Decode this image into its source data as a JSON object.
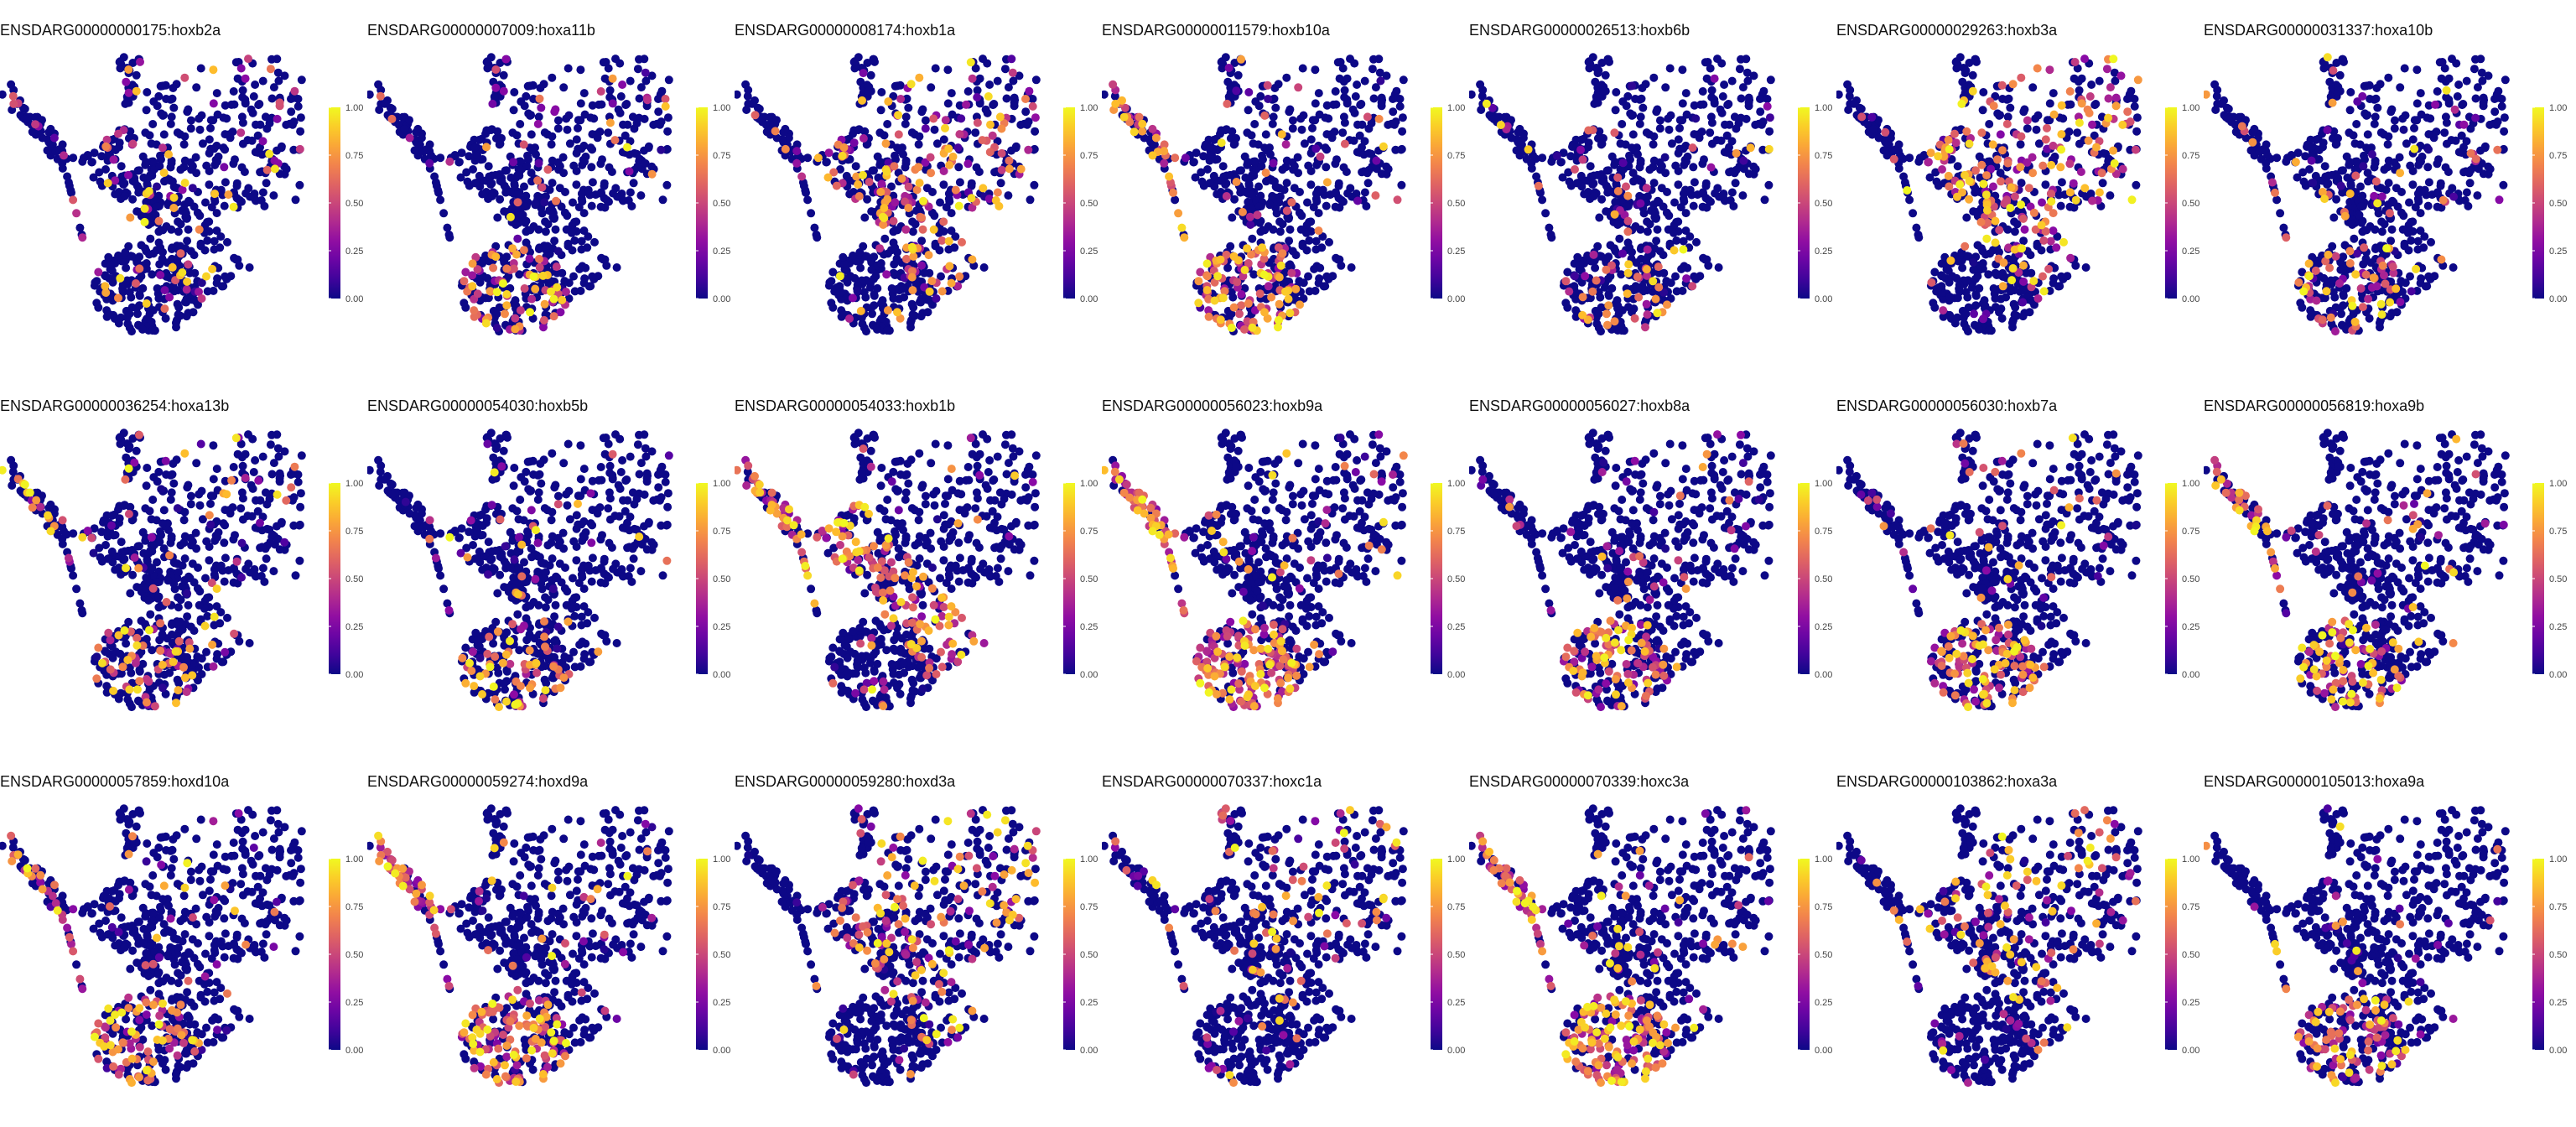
{
  "chart_data": {
    "type": "scatter",
    "layout_rows": 3,
    "layout_cols": 7,
    "colormap": "plasma",
    "colorbar": {
      "range": [
        0,
        1
      ],
      "ticks": [
        "0.00",
        "0.25",
        "0.50",
        "0.75",
        "1.00"
      ]
    },
    "background": "#ffffff",
    "grid": false,
    "axes_visible": false,
    "panels": [
      {
        "title": "ENSDARG00000000175:hoxb2a",
        "expressing_region": "scattered",
        "level": 0.35
      },
      {
        "title": "ENSDARG00000007009:hoxa11b",
        "expressing_region": "bottom",
        "level": 0.4
      },
      {
        "title": "ENSDARG00000008174:hoxb1a",
        "expressing_region": "center",
        "level": 0.5
      },
      {
        "title": "ENSDARG00000011579:hoxb10a",
        "expressing_region": "bottom-arm",
        "level": 0.55
      },
      {
        "title": "ENSDARG00000026513:hoxb6b",
        "expressing_region": "bottom",
        "level": 0.2
      },
      {
        "title": "ENSDARG00000029263:hoxb3a",
        "expressing_region": "center",
        "level": 0.55
      },
      {
        "title": "ENSDARG00000031337:hoxa10b",
        "expressing_region": "bottom",
        "level": 0.25
      },
      {
        "title": "ENSDARG00000036254:hoxa13b",
        "expressing_region": "bottom-arm",
        "level": 0.3
      },
      {
        "title": "ENSDARG00000054030:hoxb5b",
        "expressing_region": "bottom",
        "level": 0.3
      },
      {
        "title": "ENSDARG00000054033:hoxb1b",
        "expressing_region": "center-arm",
        "level": 0.6
      },
      {
        "title": "ENSDARG00000056023:hoxb9a",
        "expressing_region": "bottom-arm",
        "level": 0.75
      },
      {
        "title": "ENSDARG00000056027:hoxb8a",
        "expressing_region": "bottom",
        "level": 0.45
      },
      {
        "title": "ENSDARG00000056030:hoxb7a",
        "expressing_region": "bottom",
        "level": 0.55
      },
      {
        "title": "ENSDARG00000056819:hoxa9b",
        "expressing_region": "bottom-arm",
        "level": 0.45
      },
      {
        "title": "ENSDARG00000057859:hoxd10a",
        "expressing_region": "bottom-arm",
        "level": 0.4
      },
      {
        "title": "ENSDARG00000059274:hoxd9a",
        "expressing_region": "bottom-arm",
        "level": 0.6
      },
      {
        "title": "ENSDARG00000059280:hoxd3a",
        "expressing_region": "center",
        "level": 0.4
      },
      {
        "title": "ENSDARG00000070337:hoxc1a",
        "expressing_region": "top",
        "level": 0.3
      },
      {
        "title": "ENSDARG00000070339:hoxc3a",
        "expressing_region": "bottom-arm",
        "level": 0.7
      },
      {
        "title": "ENSDARG00000103862:hoxa3a",
        "expressing_region": "center",
        "level": 0.3
      },
      {
        "title": "ENSDARG00000105013:hoxa9a",
        "expressing_region": "bottom",
        "level": 0.4
      }
    ]
  }
}
